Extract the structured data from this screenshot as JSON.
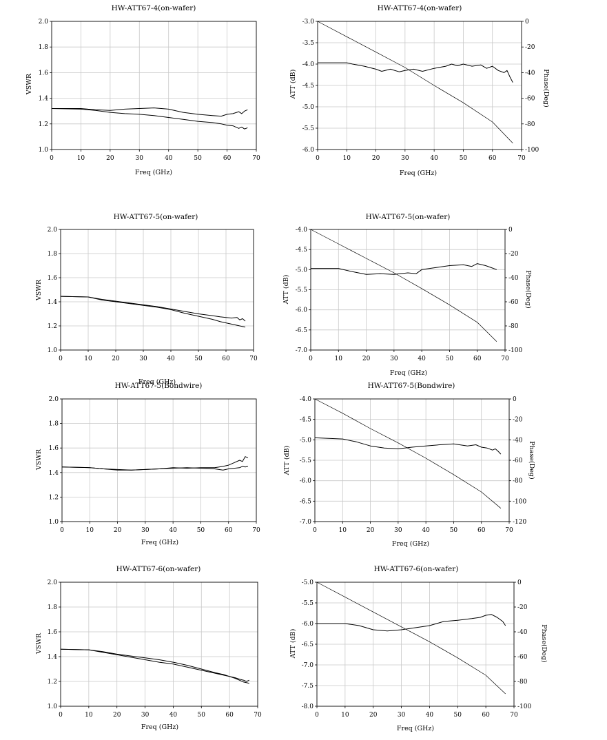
{
  "chart_data": [
    {
      "type": "line",
      "title": "HW-ATT67-4(on-wafer)",
      "xlabel": "Freq (GHz)",
      "ylabel": "VSWR",
      "xlim": [
        0,
        70
      ],
      "ylim": [
        1.0,
        2.0
      ],
      "xticks": [
        0,
        10,
        20,
        30,
        40,
        50,
        60,
        70
      ],
      "yticks": [
        1.0,
        1.2,
        1.4,
        1.6,
        1.8,
        2.0
      ],
      "grid": true,
      "series": [
        {
          "axis": "left",
          "x": [
            0,
            10,
            15,
            20,
            25,
            30,
            35,
            40,
            45,
            50,
            55,
            58,
            60,
            62,
            64,
            65,
            66,
            67
          ],
          "values": [
            1.32,
            1.32,
            1.31,
            1.305,
            1.315,
            1.32,
            1.325,
            1.315,
            1.29,
            1.275,
            1.265,
            1.26,
            1.275,
            1.28,
            1.295,
            1.28,
            1.3,
            1.31
          ]
        },
        {
          "axis": "left",
          "x": [
            0,
            10,
            15,
            20,
            25,
            30,
            35,
            40,
            45,
            50,
            55,
            58,
            60,
            62,
            64,
            65,
            66,
            67
          ],
          "values": [
            1.32,
            1.315,
            1.305,
            1.29,
            1.28,
            1.275,
            1.265,
            1.25,
            1.235,
            1.22,
            1.21,
            1.2,
            1.19,
            1.185,
            1.165,
            1.175,
            1.16,
            1.17
          ]
        }
      ]
    },
    {
      "type": "line",
      "title": "HW-ATT67-4(on-wafer)",
      "xlabel": "Freq (GHz)",
      "ylabel": "ATT (dB)",
      "y2label": "Phase(Deg)",
      "xlim": [
        0,
        70
      ],
      "ylim": [
        -6.0,
        -3.0
      ],
      "y2lim": [
        -100,
        0
      ],
      "xticks": [
        0,
        10,
        20,
        30,
        40,
        50,
        60,
        70
      ],
      "yticks": [
        -6.0,
        -5.5,
        -5.0,
        -4.5,
        -4.0,
        -3.5,
        -3.0
      ],
      "y2ticks": [
        -100,
        -80,
        -60,
        -40,
        -20,
        0
      ],
      "grid": true,
      "series": [
        {
          "axis": "left",
          "x": [
            0,
            10,
            12,
            16,
            20,
            22,
            25,
            28,
            30,
            33,
            36,
            40,
            44,
            46,
            48,
            50,
            53,
            56,
            58,
            60,
            62,
            64,
            65,
            66,
            67
          ],
          "values": [
            -3.97,
            -3.97,
            -4.0,
            -4.05,
            -4.12,
            -4.17,
            -4.12,
            -4.18,
            -4.15,
            -4.12,
            -4.17,
            -4.1,
            -4.05,
            -4.0,
            -4.04,
            -4.0,
            -4.05,
            -4.02,
            -4.1,
            -4.05,
            -4.15,
            -4.2,
            -4.15,
            -4.3,
            -4.43
          ]
        },
        {
          "axis": "right",
          "x": [
            0,
            10,
            20,
            30,
            40,
            50,
            60,
            67
          ],
          "values": [
            0,
            -12,
            -24,
            -36,
            -50,
            -63.5,
            -78.5,
            -95
          ]
        }
      ]
    },
    {
      "type": "line",
      "title": "HW-ATT67-5(on-wafer)",
      "xlabel": "Freq (GHz)",
      "ylabel": "VSWR",
      "xlim": [
        0,
        70
      ],
      "ylim": [
        1.0,
        2.0
      ],
      "xticks": [
        0,
        10,
        20,
        30,
        40,
        50,
        60,
        70
      ],
      "yticks": [
        1.0,
        1.2,
        1.4,
        1.6,
        1.8,
        2.0
      ],
      "grid": true,
      "series": [
        {
          "axis": "left",
          "x": [
            0,
            10,
            15,
            20,
            25,
            30,
            35,
            40,
            45,
            50,
            55,
            58,
            60,
            62,
            64,
            65,
            66,
            67
          ],
          "values": [
            1.445,
            1.44,
            1.42,
            1.405,
            1.39,
            1.375,
            1.36,
            1.34,
            1.32,
            1.3,
            1.285,
            1.275,
            1.27,
            1.265,
            1.27,
            1.25,
            1.26,
            1.24
          ]
        },
        {
          "axis": "left",
          "x": [
            0,
            10,
            15,
            20,
            25,
            30,
            35,
            40,
            45,
            50,
            55,
            58,
            60,
            62,
            64,
            65,
            66,
            67
          ],
          "values": [
            1.445,
            1.44,
            1.415,
            1.4,
            1.385,
            1.37,
            1.355,
            1.335,
            1.305,
            1.28,
            1.255,
            1.235,
            1.225,
            1.215,
            1.205,
            1.2,
            1.195,
            1.19
          ]
        }
      ]
    },
    {
      "type": "line",
      "title": "HW-ATT67-5(on-wafer)",
      "xlabel": "Freq (GHz)",
      "ylabel": "ATT (dB)",
      "y2label": "Phase(Deg)",
      "xlim": [
        0,
        70
      ],
      "ylim": [
        -7.0,
        -4.0
      ],
      "y2lim": [
        -100,
        0
      ],
      "xticks": [
        0,
        10,
        20,
        30,
        40,
        50,
        60,
        70
      ],
      "yticks": [
        -7.0,
        -6.5,
        -6.0,
        -5.5,
        -5.0,
        -4.5,
        -4.0
      ],
      "y2ticks": [
        -100,
        -80,
        -60,
        -40,
        -20,
        0
      ],
      "grid": true,
      "series": [
        {
          "axis": "left",
          "x": [
            0,
            10,
            15,
            20,
            25,
            30,
            35,
            38,
            40,
            45,
            50,
            55,
            58,
            60,
            63,
            65,
            67
          ],
          "values": [
            -4.97,
            -4.97,
            -5.05,
            -5.12,
            -5.1,
            -5.12,
            -5.08,
            -5.1,
            -5.0,
            -4.95,
            -4.9,
            -4.88,
            -4.92,
            -4.85,
            -4.9,
            -4.95,
            -5.0
          ]
        },
        {
          "axis": "right",
          "x": [
            0,
            10,
            20,
            30,
            40,
            50,
            60,
            67
          ],
          "values": [
            0,
            -12,
            -24,
            -36,
            -49,
            -62.5,
            -77,
            -93
          ]
        }
      ]
    },
    {
      "type": "line",
      "title": "HW-ATT67-5(Bondwire)",
      "xlabel": "Freq (GHz)",
      "ylabel": "VSWR",
      "xlim": [
        0,
        70
      ],
      "ylim": [
        1.0,
        2.0
      ],
      "xticks": [
        0,
        10,
        20,
        30,
        40,
        50,
        60,
        70
      ],
      "yticks": [
        1.0,
        1.2,
        1.4,
        1.6,
        1.8,
        2.0
      ],
      "grid": true,
      "series": [
        {
          "axis": "left",
          "x": [
            0,
            10,
            15,
            20,
            25,
            30,
            35,
            40,
            45,
            50,
            55,
            58,
            60,
            62,
            64,
            65,
            66,
            67
          ],
          "values": [
            1.445,
            1.44,
            1.43,
            1.42,
            1.42,
            1.425,
            1.43,
            1.44,
            1.435,
            1.44,
            1.44,
            1.45,
            1.46,
            1.48,
            1.5,
            1.49,
            1.53,
            1.52
          ]
        },
        {
          "axis": "left",
          "x": [
            0,
            10,
            15,
            20,
            25,
            30,
            35,
            40,
            45,
            50,
            55,
            58,
            60,
            62,
            64,
            65,
            66,
            67
          ],
          "values": [
            1.445,
            1.44,
            1.43,
            1.425,
            1.42,
            1.425,
            1.43,
            1.435,
            1.44,
            1.435,
            1.43,
            1.42,
            1.43,
            1.435,
            1.44,
            1.45,
            1.445,
            1.45
          ]
        }
      ]
    },
    {
      "type": "line",
      "title": "HW-ATT67-5(Bondwire)",
      "xlabel": "Freq (GHz)",
      "ylabel": "ATT (dB)",
      "y2label": "Phase(Deg)",
      "xlim": [
        0,
        70
      ],
      "ylim": [
        -7.0,
        -4.0
      ],
      "y2lim": [
        -120,
        0
      ],
      "xticks": [
        0,
        10,
        20,
        30,
        40,
        50,
        60,
        70
      ],
      "yticks": [
        -7.0,
        -6.5,
        -6.0,
        -5.5,
        -5.0,
        -4.5,
        -4.0
      ],
      "y2ticks": [
        -120,
        -100,
        -80,
        -60,
        -40,
        -20,
        0
      ],
      "grid": true,
      "series": [
        {
          "axis": "left",
          "x": [
            0,
            10,
            15,
            20,
            25,
            30,
            35,
            40,
            45,
            50,
            55,
            58,
            60,
            62,
            64,
            65,
            66,
            67
          ],
          "values": [
            -4.95,
            -4.98,
            -5.05,
            -5.15,
            -5.2,
            -5.22,
            -5.18,
            -5.15,
            -5.12,
            -5.1,
            -5.15,
            -5.12,
            -5.18,
            -5.2,
            -5.25,
            -5.22,
            -5.28,
            -5.35
          ]
        },
        {
          "axis": "right",
          "x": [
            0,
            10,
            20,
            30,
            40,
            50,
            60,
            67
          ],
          "values": [
            0,
            -14,
            -29,
            -43,
            -58,
            -74,
            -91,
            -107
          ]
        }
      ]
    },
    {
      "type": "line",
      "title": "HW-ATT67-6(on-wafer)",
      "xlabel": "Freq (GHz)",
      "ylabel": "VSWR",
      "xlim": [
        0,
        70
      ],
      "ylim": [
        1.0,
        2.0
      ],
      "xticks": [
        0,
        10,
        20,
        30,
        40,
        50,
        60,
        70
      ],
      "yticks": [
        1.0,
        1.2,
        1.4,
        1.6,
        1.8,
        2.0
      ],
      "grid": true,
      "series": [
        {
          "axis": "left",
          "x": [
            0,
            10,
            15,
            20,
            25,
            30,
            35,
            40,
            45,
            50,
            55,
            58,
            60,
            62,
            64,
            65,
            66,
            67
          ],
          "values": [
            1.46,
            1.455,
            1.44,
            1.42,
            1.405,
            1.39,
            1.375,
            1.355,
            1.33,
            1.3,
            1.27,
            1.255,
            1.24,
            1.23,
            1.215,
            1.21,
            1.2,
            1.21
          ]
        },
        {
          "axis": "left",
          "x": [
            0,
            10,
            15,
            20,
            25,
            30,
            35,
            40,
            45,
            50,
            55,
            58,
            60,
            62,
            64,
            65,
            66,
            67
          ],
          "values": [
            1.46,
            1.455,
            1.435,
            1.415,
            1.395,
            1.375,
            1.355,
            1.34,
            1.315,
            1.29,
            1.265,
            1.25,
            1.24,
            1.225,
            1.205,
            1.195,
            1.19,
            1.185
          ]
        }
      ]
    },
    {
      "type": "line",
      "title": "HW-ATT67-6(on-wafer)",
      "xlabel": "Freq (GHz)",
      "ylabel": "ATT (dB)",
      "y2label": "Phase(Deg)",
      "xlim": [
        0,
        70
      ],
      "ylim": [
        -8.0,
        -5.0
      ],
      "y2lim": [
        -100,
        0
      ],
      "xticks": [
        0,
        10,
        20,
        30,
        40,
        50,
        60,
        70
      ],
      "yticks": [
        -8.0,
        -7.5,
        -7.0,
        -6.5,
        -6.0,
        -5.5,
        -5.0
      ],
      "y2ticks": [
        -100,
        -80,
        -60,
        -40,
        -20,
        0
      ],
      "grid": true,
      "series": [
        {
          "axis": "left",
          "x": [
            0,
            10,
            15,
            20,
            25,
            30,
            35,
            40,
            45,
            50,
            55,
            58,
            60,
            62,
            64,
            65,
            66,
            67
          ],
          "values": [
            -6.0,
            -6.0,
            -6.05,
            -6.15,
            -6.18,
            -6.15,
            -6.1,
            -6.05,
            -5.95,
            -5.92,
            -5.88,
            -5.85,
            -5.8,
            -5.78,
            -5.85,
            -5.9,
            -5.95,
            -6.05
          ]
        },
        {
          "axis": "right",
          "x": [
            0,
            10,
            20,
            30,
            40,
            50,
            60,
            67
          ],
          "values": [
            0,
            -12,
            -24,
            -36,
            -48,
            -61,
            -75,
            -90
          ]
        }
      ]
    }
  ]
}
